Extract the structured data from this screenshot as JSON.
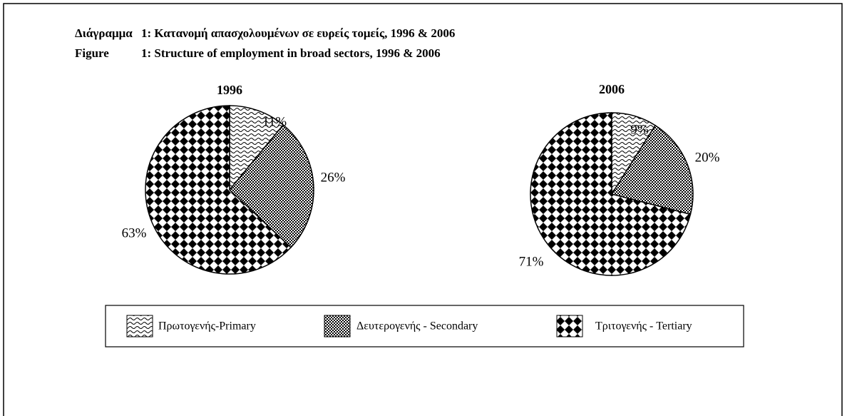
{
  "title_rows": [
    {
      "label": "Διάγραμμα",
      "text": "1:  Κατανομή απασχολουμένων σε ευρείς τομείς, 1996 & 2006"
    },
    {
      "label": "Figure",
      "text": "1:  Structure of employment in broad sectors, 1996 & 2006"
    }
  ],
  "chart_data": [
    {
      "type": "pie",
      "title": "1996",
      "categories": [
        "Πρωτογενής-Primary",
        "Δευτερογενής - Secondary",
        "Τριτογενής - Tertiary"
      ],
      "patterns": [
        "wave",
        "checker",
        "diamond"
      ],
      "values": [
        11,
        26,
        63
      ],
      "value_labels": [
        "11%",
        "26%",
        "63%"
      ]
    },
    {
      "type": "pie",
      "title": "2006",
      "categories": [
        "Πρωτογενής-Primary",
        "Δευτερογενής - Secondary",
        "Τριτογενής - Tertiary"
      ],
      "patterns": [
        "wave",
        "checker",
        "diamond"
      ],
      "values": [
        9,
        20,
        71
      ],
      "value_labels": [
        "9%",
        "20%",
        "71%"
      ]
    }
  ]
}
